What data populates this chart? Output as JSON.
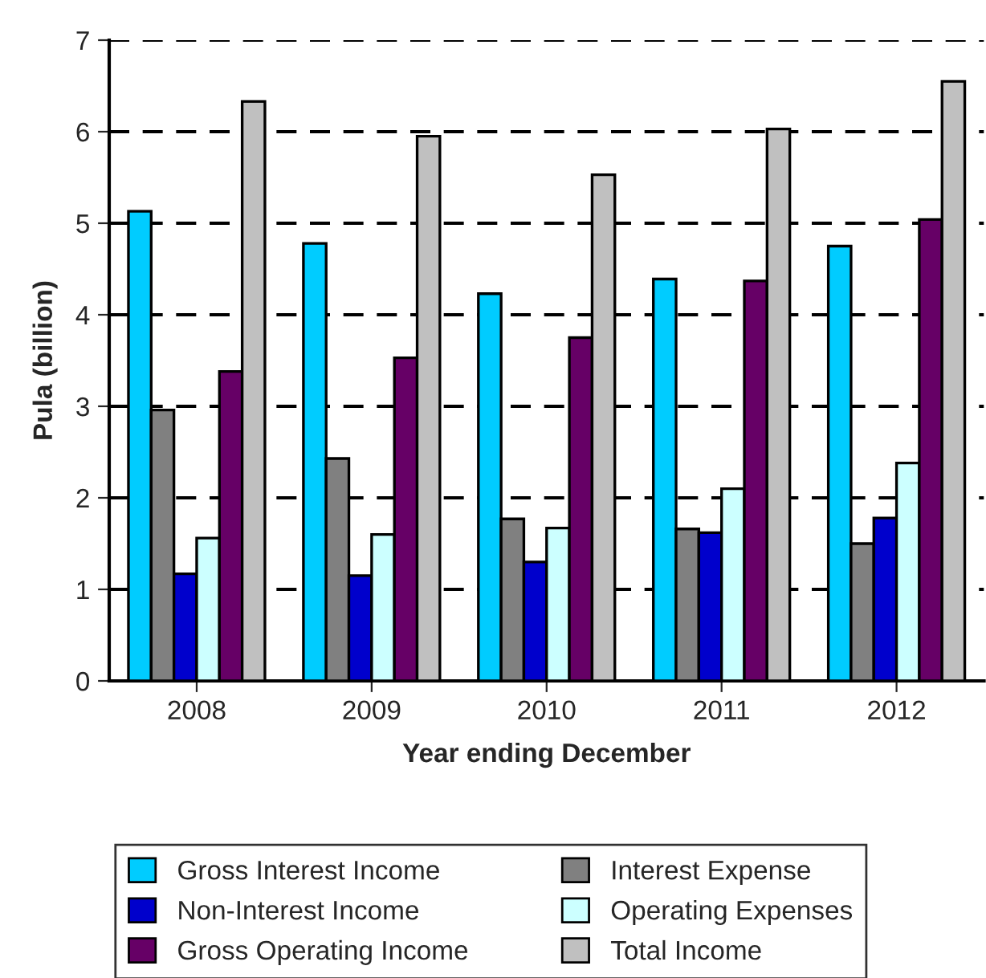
{
  "chart_data": {
    "type": "bar",
    "xlabel": "Year ending December",
    "ylabel": "Pula (billion)",
    "categories": [
      "2008",
      "2009",
      "2010",
      "2011",
      "2012"
    ],
    "series": [
      {
        "name": "Gross Interest Income",
        "color": "#00ccff",
        "values": [
          5.13,
          4.78,
          4.23,
          4.39,
          4.75
        ]
      },
      {
        "name": "Interest Expense",
        "color": "#808080",
        "values": [
          2.96,
          2.43,
          1.77,
          1.66,
          1.5
        ]
      },
      {
        "name": "Non-Interest Income",
        "color": "#0000cc",
        "values": [
          1.17,
          1.15,
          1.3,
          1.62,
          1.78
        ]
      },
      {
        "name": "Operating Expenses",
        "color": "#ccffff",
        "values": [
          1.56,
          1.6,
          1.67,
          2.1,
          2.38
        ]
      },
      {
        "name": "Gross Operating Income",
        "color": "#660066",
        "values": [
          3.38,
          3.53,
          3.75,
          4.37,
          5.04
        ]
      },
      {
        "name": "Total Income",
        "color": "#c0c0c0",
        "values": [
          6.33,
          5.95,
          5.53,
          6.03,
          6.55
        ]
      }
    ],
    "ylim": [
      0,
      7
    ],
    "yticks": [
      0,
      1,
      2,
      3,
      4,
      5,
      6,
      7
    ],
    "grid": "y",
    "legend": "bottom"
  }
}
